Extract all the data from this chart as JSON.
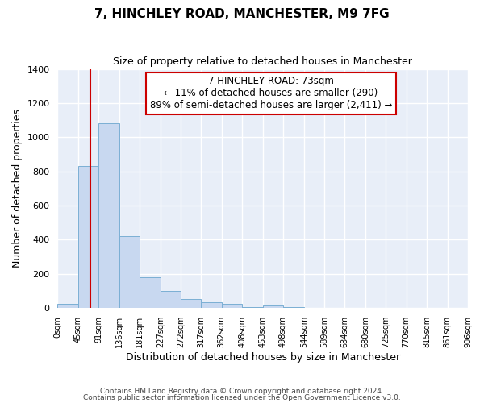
{
  "title": "7, HINCHLEY ROAD, MANCHESTER, M9 7FG",
  "subtitle": "Size of property relative to detached houses in Manchester",
  "xlabel": "Distribution of detached houses by size in Manchester",
  "ylabel": "Number of detached properties",
  "bar_color": "#c8d8f0",
  "bar_edge_color": "#7bafd4",
  "bg_color": "#e8eef8",
  "grid_color": "#ffffff",
  "annotation_box_edge": "#cc0000",
  "vline_color": "#cc0000",
  "vline_x": 73,
  "annotation_title": "7 HINCHLEY ROAD: 73sqm",
  "annotation_line1": "← 11% of detached houses are smaller (290)",
  "annotation_line2": "89% of semi-detached houses are larger (2,411) →",
  "bin_edges": [
    0,
    45,
    91,
    136,
    181,
    227,
    272,
    317,
    362,
    408,
    453,
    498,
    544,
    589,
    634,
    680,
    725,
    770,
    815,
    861,
    906
  ],
  "bin_counts": [
    25,
    830,
    1080,
    420,
    180,
    100,
    55,
    35,
    25,
    5,
    15,
    5,
    0,
    0,
    0,
    0,
    0,
    0,
    0,
    0
  ],
  "ylim": [
    0,
    1400
  ],
  "yticks": [
    0,
    200,
    400,
    600,
    800,
    1000,
    1200,
    1400
  ],
  "footer1": "Contains HM Land Registry data © Crown copyright and database right 2024.",
  "footer2": "Contains public sector information licensed under the Open Government Licence v3.0."
}
